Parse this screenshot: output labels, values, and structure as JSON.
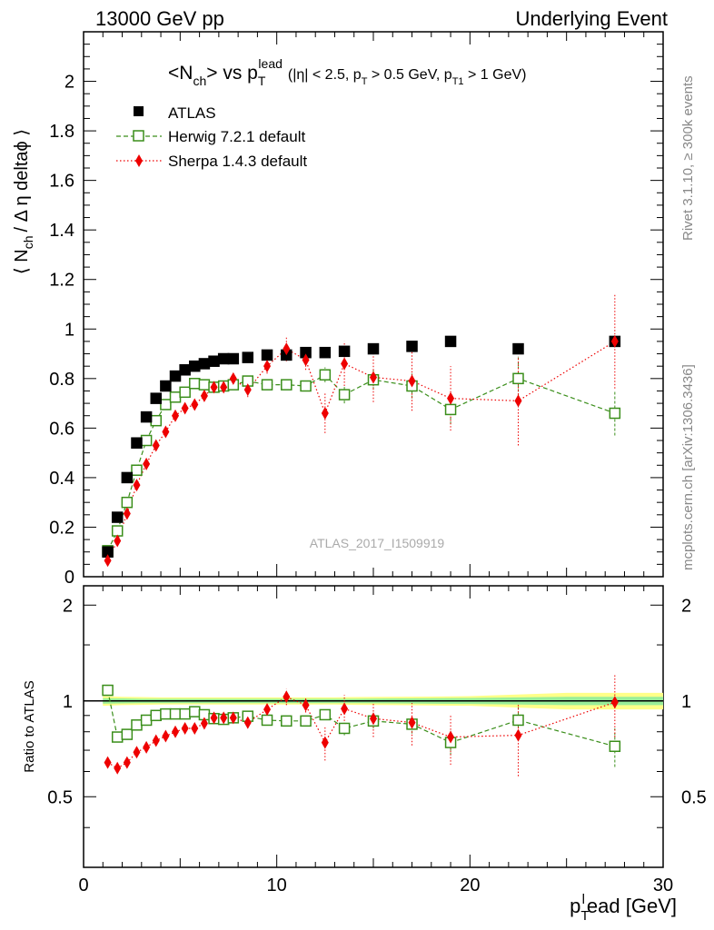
{
  "header": {
    "left": "13000 GeV pp",
    "right": "Underlying Event"
  },
  "title": {
    "main": "<N",
    "main_sub": "ch",
    "main_mid": "> vs p",
    "main_sub2": "T",
    "main_sup2": "lead",
    "cuts": "(|η| < 2.5, p",
    "cuts_sub1": "T",
    "cuts_mid": " > 0.5 GeV, p",
    "cuts_sub2": "T1",
    "cuts_end": " > 1 GeV)"
  },
  "side_labels": {
    "rivet": "Rivet 3.1.10, ≥ 300k events",
    "mcplots": "mcplots.cern.ch [arXiv:1306.3436]"
  },
  "watermark": "ATLAS_2017_I1509919",
  "y_axis_label": {
    "pre": "⟨ N",
    "sub": "ch",
    "post": "/ Δ η deltaϕ ⟩"
  },
  "ratio_label": "Ratio to ATLAS",
  "x_axis_label": {
    "p": "p",
    "sub": "T",
    "sup": "l",
    "rest": "ead [GeV]"
  },
  "colors": {
    "atlas": "#000000",
    "herwig": "#3a8e1a",
    "sherpa": "#ee0000",
    "band_yellow": "#ffff88",
    "band_green": "#99ee99"
  },
  "chart_data": {
    "type": "scatter",
    "xlim": [
      0,
      30
    ],
    "ylim": [
      0,
      2.2
    ],
    "ratio_ylim": [
      0.3,
      2.3
    ],
    "ratio_scale": "log",
    "x_ticks": [
      "0",
      "10",
      "20",
      "30"
    ],
    "y_ticks": [
      "0",
      "0.2",
      "0.4",
      "0.6",
      "0.8",
      "1",
      "1.2",
      "1.4",
      "1.6",
      "1.8",
      "2"
    ],
    "ratio_ticks": [
      "0.5",
      "1",
      "2"
    ],
    "legend_position": "top-left",
    "series": [
      {
        "name": "ATLAS",
        "marker": "filled-square",
        "x": [
          1.25,
          1.75,
          2.25,
          2.75,
          3.25,
          3.75,
          4.25,
          4.75,
          5.25,
          5.75,
          6.25,
          6.75,
          7.25,
          7.75,
          8.5,
          9.5,
          10.5,
          11.5,
          12.5,
          13.5,
          15,
          17,
          19,
          22.5,
          27.5
        ],
        "y": [
          0.1,
          0.24,
          0.4,
          0.54,
          0.645,
          0.72,
          0.77,
          0.81,
          0.835,
          0.85,
          0.86,
          0.87,
          0.88,
          0.88,
          0.885,
          0.895,
          0.895,
          0.905,
          0.905,
          0.91,
          0.92,
          0.93,
          0.95,
          0.92,
          0.95
        ]
      },
      {
        "name": "Herwig 7.2.1 default",
        "marker": "open-square",
        "line": "dashed",
        "x": [
          1.25,
          1.75,
          2.25,
          2.75,
          3.25,
          3.75,
          4.25,
          4.75,
          5.25,
          5.75,
          6.25,
          6.75,
          7.25,
          7.75,
          8.5,
          9.5,
          10.5,
          11.5,
          12.5,
          13.5,
          15,
          17,
          19,
          22.5,
          27.5
        ],
        "y": [
          0.105,
          0.185,
          0.3,
          0.43,
          0.55,
          0.63,
          0.695,
          0.725,
          0.745,
          0.78,
          0.775,
          0.765,
          0.77,
          0.775,
          0.79,
          0.775,
          0.775,
          0.77,
          0.815,
          0.735,
          0.795,
          0.77,
          0.675,
          0.8,
          0.66
        ],
        "yerr": [
          0.003,
          0.003,
          0.004,
          0.004,
          0.005,
          0.005,
          0.005,
          0.006,
          0.006,
          0.007,
          0.008,
          0.008,
          0.009,
          0.01,
          0.012,
          0.015,
          0.017,
          0.02,
          0.03,
          0.035,
          0.04,
          0.05,
          0.06,
          0.09,
          0.09
        ]
      },
      {
        "name": "Sherpa 1.4.3 default",
        "marker": "filled-diamond",
        "line": "dotted",
        "x": [
          1.25,
          1.75,
          2.25,
          2.75,
          3.25,
          3.75,
          4.25,
          4.75,
          5.25,
          5.75,
          6.25,
          6.75,
          7.25,
          7.75,
          8.5,
          9.5,
          10.5,
          11.5,
          12.5,
          13.5,
          15,
          17,
          19,
          22.5,
          27.5
        ],
        "y": [
          0.065,
          0.145,
          0.255,
          0.37,
          0.455,
          0.53,
          0.585,
          0.65,
          0.68,
          0.695,
          0.73,
          0.765,
          0.765,
          0.8,
          0.755,
          0.85,
          0.92,
          0.875,
          0.66,
          0.86,
          0.805,
          0.79,
          0.72,
          0.71,
          0.95
        ],
        "yerr": [
          0.005,
          0.006,
          0.007,
          0.008,
          0.01,
          0.01,
          0.012,
          0.012,
          0.014,
          0.015,
          0.016,
          0.018,
          0.02,
          0.025,
          0.03,
          0.03,
          0.05,
          0.04,
          0.08,
          0.09,
          0.1,
          0.12,
          0.13,
          0.18,
          0.19
        ]
      }
    ],
    "ratio_series": [
      {
        "name": "Herwig 7.2.1 default",
        "x": [
          1.25,
          1.75,
          2.25,
          2.75,
          3.25,
          3.75,
          4.25,
          4.75,
          5.25,
          5.75,
          6.25,
          6.75,
          7.25,
          7.75,
          8.5,
          9.5,
          10.5,
          11.5,
          12.5,
          13.5,
          15,
          17,
          19,
          22.5,
          27.5
        ],
        "y": [
          1.08,
          0.77,
          0.785,
          0.84,
          0.87,
          0.9,
          0.91,
          0.91,
          0.91,
          0.925,
          0.905,
          0.88,
          0.875,
          0.885,
          0.895,
          0.87,
          0.865,
          0.865,
          0.905,
          0.82,
          0.865,
          0.845,
          0.74,
          0.87,
          0.72
        ],
        "yerr": [
          0.01,
          0.01,
          0.01,
          0.01,
          0.01,
          0.01,
          0.01,
          0.01,
          0.01,
          0.01,
          0.01,
          0.01,
          0.01,
          0.012,
          0.015,
          0.02,
          0.02,
          0.025,
          0.03,
          0.04,
          0.045,
          0.055,
          0.065,
          0.1,
          0.1
        ]
      },
      {
        "name": "Sherpa 1.4.3 default",
        "x": [
          1.25,
          1.75,
          2.25,
          2.75,
          3.25,
          3.75,
          4.25,
          4.75,
          5.25,
          5.75,
          6.25,
          6.75,
          7.25,
          7.75,
          8.5,
          9.5,
          10.5,
          11.5,
          12.5,
          13.5,
          15,
          17,
          19,
          22.5,
          27.5
        ],
        "y": [
          0.64,
          0.615,
          0.64,
          0.69,
          0.715,
          0.75,
          0.775,
          0.8,
          0.82,
          0.82,
          0.85,
          0.885,
          0.885,
          0.885,
          0.855,
          0.94,
          1.03,
          0.97,
          0.74,
          0.945,
          0.88,
          0.855,
          0.77,
          0.78,
          0.99
        ],
        "yerr": [
          0.01,
          0.01,
          0.01,
          0.012,
          0.014,
          0.015,
          0.016,
          0.017,
          0.018,
          0.02,
          0.02,
          0.022,
          0.025,
          0.03,
          0.035,
          0.035,
          0.06,
          0.05,
          0.09,
          0.1,
          0.11,
          0.13,
          0.14,
          0.2,
          0.22
        ]
      }
    ],
    "uncertainty_band": {
      "x": [
        1,
        2,
        3,
        4,
        5,
        6,
        7,
        8,
        9,
        10,
        11,
        12,
        13,
        14,
        16,
        18,
        20,
        25,
        30
      ],
      "green_halfwidth": [
        0.02,
        0.018,
        0.016,
        0.016,
        0.016,
        0.016,
        0.016,
        0.016,
        0.016,
        0.016,
        0.016,
        0.016,
        0.016,
        0.016,
        0.018,
        0.02,
        0.022,
        0.03,
        0.03
      ],
      "yellow_halfwidth": [
        0.035,
        0.03,
        0.028,
        0.026,
        0.026,
        0.026,
        0.026,
        0.026,
        0.026,
        0.026,
        0.026,
        0.026,
        0.026,
        0.028,
        0.03,
        0.032,
        0.035,
        0.06,
        0.06
      ]
    }
  }
}
